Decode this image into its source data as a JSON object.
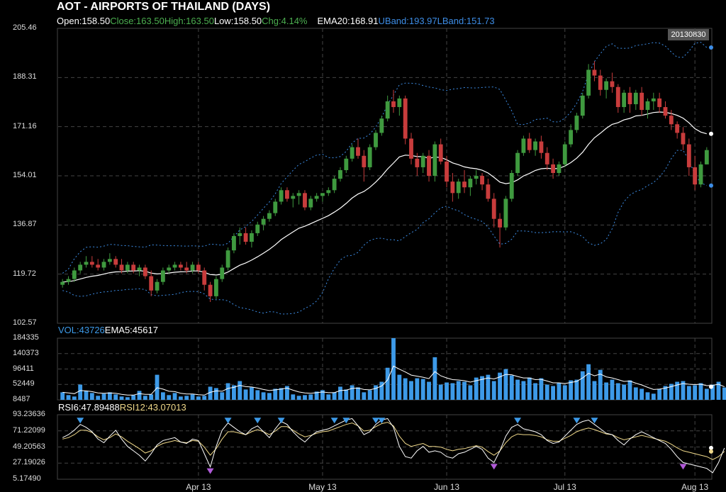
{
  "header": {
    "title": "AOT - AIRPORTS OF THAILAND (DAYS)",
    "open_label": "Open:158.50",
    "close_label": "Close:163.50",
    "high_label": "High:163.50",
    "low_label": "Low:158.50",
    "chg_label": "Chg:4.14%",
    "ema_label": "EMA20:168.91",
    "uband_label": "UBand:193.97",
    "lband_label": "LBand:151.73",
    "date": "20130830"
  },
  "volume_header": {
    "vol_label": "VOL:43726",
    "ema_label": "EMA5:45617"
  },
  "rsi_header": {
    "rsi6_label": "RSI6:47.89488",
    "rsi12_label": "RSI12:43.07013"
  },
  "colors": {
    "up": "#3f9a3f",
    "down": "#c83c3c",
    "doji": "#f5e6a8",
    "band": "#3d8de6",
    "ema": "#ffffff",
    "volume": "#3d9ae8",
    "rsi6": "#ffffff",
    "rsi12": "#f0d98a",
    "buy_marker": "#3d9ae8",
    "sell_marker": "#b05ad8"
  },
  "chart_data": [
    {
      "type": "candlestick",
      "title": "AOT - AIRPORTS OF THAILAND (DAYS)",
      "y_ticks": [
        "205.46",
        "188.31",
        "171.16",
        "154.01",
        "136.87",
        "119.72",
        "102.57"
      ],
      "ylim": [
        102.57,
        205.46
      ],
      "x_ticks": [
        {
          "label": "Apr 13",
          "index": 23
        },
        {
          "label": "May 13",
          "index": 44
        },
        {
          "label": "Jun 13",
          "index": 65
        },
        {
          "label": "Jul 13",
          "index": 85
        },
        {
          "label": "Aug 13",
          "index": 107
        }
      ],
      "grid": true,
      "candles": [
        [
          116,
          118,
          115,
          117
        ],
        [
          117,
          119,
          116,
          118
        ],
        [
          118,
          122,
          117,
          121
        ],
        [
          121,
          124,
          120,
          123
        ],
        [
          123,
          126,
          122,
          124
        ],
        [
          124,
          126,
          122,
          123
        ],
        [
          123,
          125,
          121,
          122
        ],
        [
          122,
          125,
          121,
          124
        ],
        [
          124,
          127,
          123,
          125
        ],
        [
          125,
          126,
          122,
          123
        ],
        [
          123,
          125,
          120,
          121
        ],
        [
          121,
          124,
          120,
          123
        ],
        [
          123,
          124,
          120,
          121
        ],
        [
          121,
          123,
          119,
          122
        ],
        [
          122,
          123,
          118,
          119
        ],
        [
          119,
          121,
          112,
          114
        ],
        [
          114,
          118,
          113,
          117
        ],
        [
          117,
          122,
          116,
          121
        ],
        [
          121,
          123,
          120,
          122
        ],
        [
          122,
          124,
          121,
          123
        ],
        [
          123,
          124,
          121,
          122
        ],
        [
          122,
          124,
          120,
          121
        ],
        [
          121,
          124,
          120,
          123
        ],
        [
          123,
          124,
          120,
          121
        ],
        [
          121,
          122,
          114,
          116
        ],
        [
          116,
          117,
          110,
          112
        ],
        [
          112,
          119,
          111,
          118
        ],
        [
          118,
          123,
          117,
          122
        ],
        [
          122,
          129,
          121,
          128
        ],
        [
          128,
          134,
          127,
          133
        ],
        [
          133,
          136,
          130,
          134
        ],
        [
          134,
          136,
          130,
          131
        ],
        [
          131,
          135,
          129,
          134
        ],
        [
          134,
          138,
          133,
          137
        ],
        [
          137,
          140,
          135,
          139
        ],
        [
          139,
          142,
          138,
          141
        ],
        [
          141,
          146,
          140,
          145
        ],
        [
          145,
          150,
          144,
          149
        ],
        [
          149,
          150,
          145,
          146
        ],
        [
          146,
          148,
          143,
          147
        ],
        [
          147,
          149,
          144,
          148
        ],
        [
          148,
          149,
          142,
          143
        ],
        [
          143,
          147,
          142,
          146
        ],
        [
          146,
          148,
          145,
          147
        ],
        [
          147,
          148,
          145,
          148
        ],
        [
          148,
          150,
          147,
          149
        ],
        [
          149,
          154,
          148,
          153
        ],
        [
          153,
          157,
          152,
          156
        ],
        [
          156,
          161,
          155,
          160
        ],
        [
          160,
          165,
          159,
          164
        ],
        [
          164,
          167,
          160,
          161
        ],
        [
          161,
          163,
          152,
          157
        ],
        [
          157,
          165,
          156,
          164
        ],
        [
          164,
          170,
          163,
          169
        ],
        [
          169,
          175,
          168,
          174
        ],
        [
          174,
          182,
          173,
          180
        ],
        [
          180,
          184,
          176,
          178
        ],
        [
          178,
          182,
          175,
          181
        ],
        [
          181,
          182,
          165,
          167
        ],
        [
          167,
          169,
          158,
          160
        ],
        [
          160,
          162,
          154,
          157
        ],
        [
          157,
          162,
          155,
          161
        ],
        [
          161,
          163,
          152,
          154
        ],
        [
          154,
          166,
          152,
          165
        ],
        [
          165,
          167,
          158,
          159
        ],
        [
          159,
          161,
          150,
          152
        ],
        [
          152,
          155,
          145,
          148
        ],
        [
          148,
          153,
          146,
          152
        ],
        [
          152,
          156,
          148,
          150
        ],
        [
          150,
          154,
          147,
          153
        ],
        [
          153,
          156,
          151,
          154
        ],
        [
          154,
          155,
          149,
          151
        ],
        [
          151,
          153,
          145,
          146
        ],
        [
          146,
          148,
          136,
          139
        ],
        [
          139,
          141,
          129,
          136
        ],
        [
          136,
          147,
          135,
          146
        ],
        [
          146,
          156,
          145,
          155
        ],
        [
          155,
          163,
          154,
          162
        ],
        [
          162,
          168,
          161,
          167
        ],
        [
          167,
          169,
          162,
          163
        ],
        [
          163,
          167,
          161,
          166
        ],
        [
          166,
          168,
          160,
          162
        ],
        [
          162,
          164,
          156,
          158
        ],
        [
          158,
          160,
          153,
          155
        ],
        [
          155,
          159,
          154,
          158
        ],
        [
          158,
          166,
          157,
          165
        ],
        [
          165,
          172,
          164,
          170
        ],
        [
          170,
          176,
          169,
          175
        ],
        [
          175,
          183,
          174,
          182
        ],
        [
          182,
          193,
          181,
          191
        ],
        [
          191,
          194,
          187,
          189
        ],
        [
          189,
          191,
          182,
          184
        ],
        [
          184,
          188,
          181,
          187
        ],
        [
          187,
          190,
          183,
          185
        ],
        [
          185,
          186,
          176,
          178
        ],
        [
          178,
          184,
          176,
          183
        ],
        [
          183,
          185,
          176,
          179
        ],
        [
          179,
          184,
          177,
          183
        ],
        [
          183,
          185,
          175,
          177
        ],
        [
          177,
          181,
          174,
          180
        ],
        [
          180,
          183,
          177,
          181
        ],
        [
          181,
          183,
          176,
          178
        ],
        [
          178,
          180,
          174,
          175
        ],
        [
          175,
          177,
          170,
          172
        ],
        [
          172,
          173,
          167,
          169
        ],
        [
          169,
          171,
          163,
          165
        ],
        [
          165,
          167,
          154,
          157
        ],
        [
          157,
          161,
          149,
          151
        ],
        [
          151,
          159,
          150,
          158
        ],
        [
          158,
          164,
          158,
          163
        ]
      ]
    },
    {
      "type": "bar",
      "title": "VOL",
      "y_ticks": [
        "184335",
        "140373",
        "96411",
        "52449",
        "8487"
      ],
      "ylim": [
        8487,
        184335
      ],
      "values": [
        30000,
        22000,
        18000,
        52000,
        34000,
        28000,
        20000,
        26000,
        30000,
        24000,
        18000,
        16000,
        22000,
        34000,
        20000,
        24000,
        80000,
        30000,
        22000,
        28000,
        18000,
        20000,
        24000,
        18000,
        20000,
        46000,
        42000,
        30000,
        56000,
        50000,
        62000,
        38000,
        44000,
        36000,
        30000,
        28000,
        40000,
        42000,
        48000,
        24000,
        20000,
        22000,
        24000,
        32000,
        36000,
        24000,
        30000,
        46000,
        38000,
        50000,
        44000,
        30000,
        36000,
        50000,
        60000,
        100000,
        184335,
        80000,
        70000,
        62000,
        70000,
        68000,
        60000,
        130000,
        52000,
        58000,
        56000,
        62000,
        60000,
        50000,
        72000,
        76000,
        80000,
        62000,
        86000,
        96000,
        78000,
        66000,
        62000,
        72000,
        56000,
        70000,
        52000,
        48000,
        56000,
        50000,
        64000,
        66000,
        90000,
        110000,
        62000,
        94000,
        58000,
        66000,
        56000,
        52000,
        64000,
        44000,
        40000,
        30000,
        26000,
        40000,
        48000,
        54000,
        60000,
        62000,
        48000,
        50000,
        56000,
        40000,
        52000,
        60000,
        43726
      ],
      "ema_values": [
        30000,
        28000,
        26000,
        35000,
        34000,
        32000,
        28000,
        27000,
        28000,
        27000,
        24000,
        22000,
        22000,
        26000,
        24000,
        24000,
        43000,
        39000,
        33000,
        32000,
        27000,
        25000,
        25000,
        23000,
        22000,
        30000,
        34000,
        33000,
        41000,
        44000,
        50000,
        46000,
        45000,
        42000,
        38000,
        35000,
        37000,
        39000,
        42000,
        36000,
        31000,
        28000,
        27000,
        29000,
        31000,
        29000,
        29000,
        35000,
        36000,
        41000,
        42000,
        38000,
        37000,
        41000,
        48000,
        65000,
        105000,
        96000,
        88000,
        79000,
        76000,
        73000,
        69000,
        89000,
        77000,
        71000,
        66000,
        65000,
        63000,
        59000,
        63000,
        67000,
        71000,
        68000,
        74000,
        81000,
        80000,
        75000,
        71000,
        71000,
        66000,
        67000,
        62000,
        57000,
        57000,
        55000,
        58000,
        61000,
        71000,
        84000,
        77000,
        82000,
        74000,
        71000,
        66000,
        61000,
        62000,
        56000,
        51000,
        44000,
        38000,
        39000,
        42000,
        46000,
        51000,
        55000,
        53000,
        52000,
        53000,
        49000,
        50000,
        53000,
        45617
      ]
    },
    {
      "type": "line",
      "title": "RSI",
      "y_ticks": [
        "93.23636",
        "71.22099",
        "49.20563",
        "27.19026",
        "5.17490"
      ],
      "ylim": [
        5.1749,
        93.23636
      ],
      "series": [
        {
          "name": "RSI6",
          "values": [
            62,
            66,
            72,
            80,
            76,
            70,
            60,
            55,
            64,
            72,
            60,
            50,
            44,
            38,
            30,
            40,
            52,
            58,
            60,
            62,
            56,
            54,
            60,
            58,
            40,
            22,
            50,
            72,
            82,
            76,
            70,
            66,
            74,
            78,
            70,
            62,
            74,
            84,
            80,
            70,
            62,
            56,
            64,
            70,
            72,
            74,
            78,
            82,
            86,
            88,
            78,
            66,
            70,
            80,
            86,
            88,
            76,
            50,
            36,
            34,
            44,
            50,
            42,
            44,
            42,
            36,
            34,
            40,
            42,
            46,
            50,
            46,
            34,
            28,
            44,
            64,
            76,
            80,
            74,
            72,
            70,
            66,
            58,
            54,
            56,
            64,
            72,
            80,
            84,
            86,
            80,
            74,
            68,
            66,
            58,
            52,
            60,
            66,
            70,
            66,
            62,
            58,
            54,
            46,
            36,
            28,
            26,
            24,
            22,
            20,
            14,
            28,
            47.89
          ]
        },
        {
          "name": "RSI12",
          "values": [
            60,
            62,
            66,
            72,
            72,
            69,
            63,
            59,
            62,
            67,
            63,
            57,
            52,
            47,
            41,
            44,
            50,
            54,
            56,
            58,
            56,
            55,
            58,
            57,
            49,
            38,
            47,
            60,
            70,
            70,
            68,
            66,
            70,
            73,
            70,
            66,
            71,
            77,
            77,
            72,
            67,
            63,
            65,
            68,
            70,
            71,
            74,
            77,
            80,
            82,
            78,
            71,
            72,
            77,
            81,
            83,
            78,
            64,
            54,
            50,
            52,
            54,
            50,
            50,
            49,
            46,
            44,
            46,
            47,
            49,
            51,
            49,
            43,
            38,
            44,
            55,
            63,
            67,
            66,
            66,
            65,
            63,
            59,
            57,
            57,
            61,
            65,
            70,
            73,
            75,
            73,
            70,
            67,
            66,
            62,
            59,
            61,
            63,
            65,
            63,
            61,
            59,
            57,
            53,
            48,
            44,
            42,
            40,
            38,
            36,
            32,
            36,
            43.07
          ]
        }
      ]
    }
  ],
  "x_axis": {
    "labels": [
      "Apr 13",
      "May 13",
      "Jun 13",
      "Jul 13",
      "Aug 13"
    ]
  }
}
